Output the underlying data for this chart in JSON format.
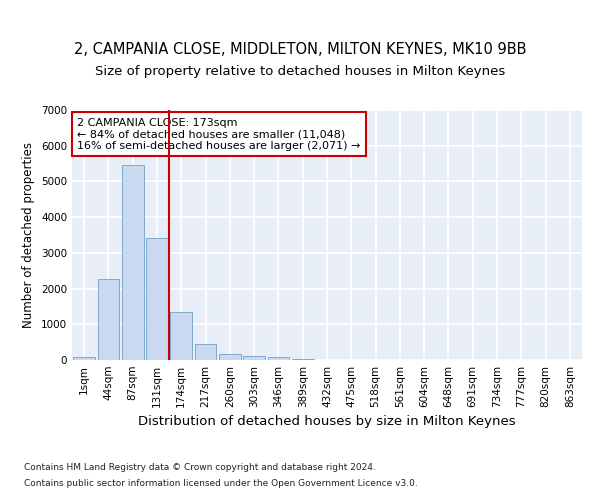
{
  "title1": "2, CAMPANIA CLOSE, MIDDLETON, MILTON KEYNES, MK10 9BB",
  "title2": "Size of property relative to detached houses in Milton Keynes",
  "xlabel": "Distribution of detached houses by size in Milton Keynes",
  "ylabel": "Number of detached properties",
  "categories": [
    "1sqm",
    "44sqm",
    "87sqm",
    "131sqm",
    "174sqm",
    "217sqm",
    "260sqm",
    "303sqm",
    "346sqm",
    "389sqm",
    "432sqm",
    "475sqm",
    "518sqm",
    "561sqm",
    "604sqm",
    "648sqm",
    "691sqm",
    "734sqm",
    "777sqm",
    "820sqm",
    "863sqm"
  ],
  "values": [
    75,
    2270,
    5450,
    3430,
    1350,
    460,
    180,
    100,
    75,
    15,
    5,
    2,
    0,
    0,
    0,
    0,
    0,
    0,
    0,
    0,
    0
  ],
  "bar_color": "#c9d9ef",
  "bar_edge_color": "#7faacc",
  "marker_line_color": "#cc0000",
  "annotation_text": "2 CAMPANIA CLOSE: 173sqm\n← 84% of detached houses are smaller (11,048)\n16% of semi-detached houses are larger (2,071) →",
  "annotation_box_color": "#ffffff",
  "annotation_box_edge": "#cc0000",
  "ylim": [
    0,
    7000
  ],
  "footnote1": "Contains HM Land Registry data © Crown copyright and database right 2024.",
  "footnote2": "Contains public sector information licensed under the Open Government Licence v3.0.",
  "background_color": "#e8eef8",
  "grid_color": "#ffffff",
  "title1_fontsize": 10.5,
  "title2_fontsize": 9.5,
  "xlabel_fontsize": 9.5,
  "ylabel_fontsize": 8.5,
  "tick_fontsize": 7.5,
  "footnote_fontsize": 6.5,
  "annotation_fontsize": 8.0
}
